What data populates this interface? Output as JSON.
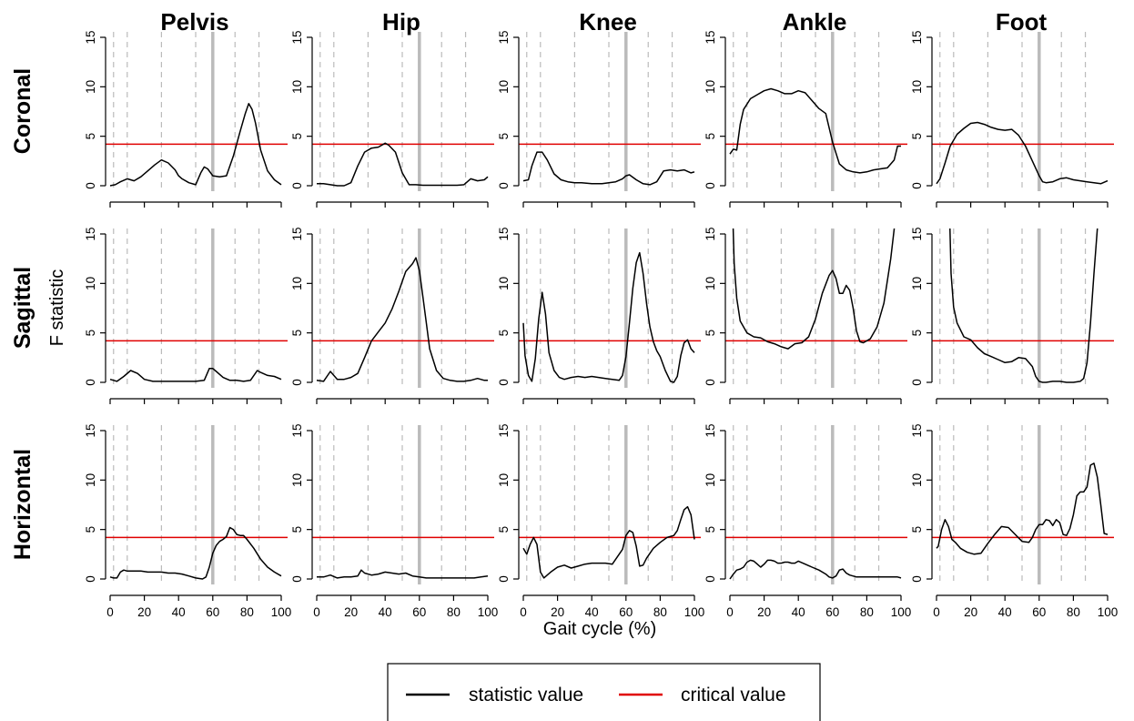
{
  "figure": {
    "xlabel": "Gait cycle (%)",
    "ylabel": "F statistic",
    "columns": [
      "Pelvis",
      "Hip",
      "Knee",
      "Ankle",
      "Foot"
    ],
    "rows": [
      "Coronal",
      "Sagittal",
      "Horizontal"
    ],
    "legend": {
      "statistic_label": "statistic value",
      "critical_label": "critical value",
      "statistic_color": "#000000",
      "critical_color": "#e00000"
    }
  },
  "chart_data": {
    "type": "line",
    "xlabel": "Gait cycle (%)",
    "ylabel": "F statistic",
    "xlim": [
      0,
      100
    ],
    "ylim": [
      0,
      15
    ],
    "xticks": [
      0,
      20,
      40,
      60,
      80,
      100
    ],
    "yticks": [
      0,
      5,
      10,
      15
    ],
    "critical_value": 4.2,
    "event_lines_dashed": [
      2,
      10,
      30,
      50,
      73,
      87
    ],
    "event_line_solid": 60,
    "grid_color": "#bbbbbb",
    "panels": [
      {
        "row": "Coronal",
        "col": "Pelvis",
        "x": [
          0,
          3,
          6,
          10,
          14,
          18,
          22,
          26,
          30,
          34,
          38,
          40,
          42,
          46,
          50,
          53,
          55,
          57,
          60,
          64,
          68,
          72,
          76,
          79,
          81,
          83,
          85,
          88,
          92,
          96,
          100
        ],
        "y": [
          0,
          0.1,
          0.4,
          0.7,
          0.5,
          0.9,
          1.5,
          2.1,
          2.6,
          2.3,
          1.6,
          1.0,
          0.7,
          0.3,
          0.1,
          1.3,
          1.9,
          1.7,
          1.0,
          0.9,
          1.0,
          3.0,
          5.5,
          7.3,
          8.3,
          7.7,
          6.3,
          3.6,
          1.5,
          0.6,
          0.1
        ]
      },
      {
        "row": "Coronal",
        "col": "Hip",
        "x": [
          0,
          4,
          8,
          12,
          16,
          20,
          24,
          28,
          32,
          36,
          40,
          42,
          46,
          50,
          54,
          58,
          62,
          66,
          70,
          74,
          78,
          82,
          86,
          90,
          94,
          98,
          100
        ],
        "y": [
          0.2,
          0.2,
          0.1,
          0,
          0,
          0.3,
          2.0,
          3.4,
          3.8,
          3.9,
          4.3,
          4.1,
          3.4,
          1.3,
          0.1,
          0.1,
          0.05,
          0.05,
          0.05,
          0.05,
          0.05,
          0.05,
          0.1,
          0.7,
          0.5,
          0.6,
          0.9
        ]
      },
      {
        "row": "Coronal",
        "col": "Knee",
        "x": [
          0,
          3,
          5,
          8,
          11,
          14,
          18,
          22,
          26,
          30,
          34,
          40,
          46,
          50,
          54,
          58,
          60,
          62,
          66,
          70,
          74,
          78,
          82,
          86,
          90,
          94,
          98,
          100
        ],
        "y": [
          0.5,
          0.6,
          2.0,
          3.4,
          3.4,
          2.6,
          1.2,
          0.6,
          0.4,
          0.3,
          0.3,
          0.2,
          0.2,
          0.3,
          0.4,
          0.7,
          1.0,
          1.1,
          0.6,
          0.2,
          0.1,
          0.4,
          1.5,
          1.6,
          1.5,
          1.6,
          1.3,
          1.4
        ]
      },
      {
        "row": "Coronal",
        "col": "Ankle",
        "x": [
          0,
          2,
          4,
          6,
          8,
          12,
          16,
          20,
          24,
          28,
          32,
          36,
          40,
          44,
          48,
          52,
          56,
          60,
          64,
          68,
          72,
          76,
          80,
          84,
          88,
          92,
          96,
          98,
          100
        ],
        "y": [
          3.2,
          3.7,
          3.6,
          6.2,
          7.7,
          8.8,
          9.2,
          9.6,
          9.8,
          9.6,
          9.3,
          9.3,
          9.6,
          9.4,
          8.6,
          7.8,
          7.3,
          4.4,
          2.2,
          1.6,
          1.4,
          1.3,
          1.4,
          1.6,
          1.7,
          1.8,
          2.6,
          4.0,
          4.0
        ]
      },
      {
        "row": "Coronal",
        "col": "Foot",
        "x": [
          0,
          2,
          5,
          8,
          12,
          16,
          20,
          24,
          28,
          32,
          36,
          40,
          44,
          48,
          52,
          56,
          60,
          62,
          64,
          68,
          72,
          76,
          80,
          84,
          88,
          92,
          96,
          100
        ],
        "y": [
          0.2,
          0.7,
          2.3,
          4.0,
          5.2,
          5.8,
          6.3,
          6.4,
          6.2,
          5.9,
          5.7,
          5.6,
          5.7,
          5.1,
          4.0,
          2.5,
          1.0,
          0.4,
          0.3,
          0.4,
          0.7,
          0.8,
          0.6,
          0.5,
          0.4,
          0.3,
          0.2,
          0.5
        ]
      },
      {
        "row": "Sagittal",
        "col": "Pelvis",
        "x": [
          0,
          4,
          8,
          12,
          16,
          20,
          25,
          30,
          35,
          40,
          45,
          50,
          55,
          58,
          60,
          62,
          66,
          70,
          74,
          78,
          82,
          86,
          88,
          92,
          96,
          100
        ],
        "y": [
          0.3,
          0.1,
          0.6,
          1.2,
          0.9,
          0.3,
          0.1,
          0.1,
          0.1,
          0.1,
          0.1,
          0.1,
          0.2,
          1.4,
          1.4,
          1.1,
          0.5,
          0.2,
          0.2,
          0.1,
          0.2,
          1.2,
          1.0,
          0.7,
          0.6,
          0.3
        ]
      },
      {
        "row": "Sagittal",
        "col": "Hip",
        "x": [
          0,
          4,
          8,
          12,
          16,
          20,
          24,
          28,
          32,
          36,
          40,
          44,
          48,
          52,
          56,
          58,
          60,
          62,
          64,
          66,
          70,
          74,
          78,
          82,
          86,
          90,
          94,
          98,
          100
        ],
        "y": [
          0.2,
          0.1,
          1.1,
          0.3,
          0.3,
          0.5,
          0.9,
          2.5,
          4.2,
          5.1,
          6.0,
          7.4,
          9.2,
          11.2,
          12.0,
          12.6,
          11.3,
          8.7,
          6.1,
          3.4,
          1.2,
          0.4,
          0.2,
          0.1,
          0.1,
          0.2,
          0.4,
          0.2,
          0.2
        ]
      },
      {
        "row": "Sagittal",
        "col": "Knee",
        "x": [
          0,
          1,
          3,
          5,
          7,
          9,
          11,
          13,
          15,
          18,
          21,
          24,
          28,
          32,
          36,
          40,
          44,
          48,
          52,
          56,
          58,
          60,
          62,
          64,
          66,
          68,
          70,
          72,
          74,
          76,
          78,
          80,
          83,
          86,
          88,
          90,
          92,
          94,
          96,
          98,
          100
        ],
        "y": [
          6.0,
          2.7,
          0.7,
          0.1,
          2.4,
          6.4,
          9.1,
          6.9,
          3.0,
          1.2,
          0.5,
          0.3,
          0.5,
          0.6,
          0.5,
          0.6,
          0.5,
          0.4,
          0.3,
          0.2,
          0.7,
          2.6,
          6.0,
          9.5,
          12.1,
          13.1,
          11.0,
          8.0,
          5.6,
          4.1,
          3.2,
          2.6,
          1.2,
          0.1,
          0.0,
          0.6,
          2.7,
          4.0,
          4.3,
          3.4,
          3.0
        ]
      },
      {
        "row": "Sagittal",
        "col": "Ankle",
        "x": [
          1.5,
          2.5,
          4,
          6,
          10,
          14,
          18,
          22,
          26,
          30,
          34,
          38,
          42,
          46,
          50,
          54,
          58,
          60,
          62,
          64,
          66,
          68,
          70,
          72,
          74,
          76,
          78,
          82,
          86,
          90,
          94,
          96,
          98
        ],
        "y": [
          18,
          12,
          8.5,
          6.2,
          5.0,
          4.6,
          4.5,
          4.1,
          3.9,
          3.6,
          3.4,
          3.9,
          4.0,
          4.6,
          6.4,
          9.0,
          10.8,
          11.3,
          10.5,
          9.0,
          9.0,
          9.8,
          9.3,
          7.5,
          5.2,
          4.1,
          4.0,
          4.4,
          5.6,
          8.0,
          12.5,
          15.5,
          18
        ]
      },
      {
        "row": "Sagittal",
        "col": "Foot",
        "x": [
          7.5,
          8.5,
          10,
          12,
          16,
          20,
          24,
          28,
          32,
          36,
          40,
          44,
          48,
          52,
          56,
          58,
          60,
          62,
          64,
          68,
          72,
          76,
          80,
          84,
          86,
          88,
          90,
          92,
          94,
          96
        ],
        "y": [
          18,
          11,
          7.6,
          6.0,
          4.6,
          4.3,
          3.5,
          2.9,
          2.6,
          2.3,
          2.0,
          2.1,
          2.5,
          2.4,
          1.6,
          0.6,
          0.1,
          0.0,
          0.0,
          0.1,
          0.1,
          0.0,
          0.0,
          0.1,
          0.4,
          2.0,
          6.0,
          11.0,
          15.5,
          18
        ]
      },
      {
        "row": "Horizontal",
        "col": "Pelvis",
        "x": [
          0,
          2,
          4,
          6,
          8,
          10,
          14,
          18,
          22,
          26,
          30,
          34,
          38,
          42,
          46,
          50,
          54,
          56,
          58,
          60,
          62,
          64,
          66,
          68,
          70,
          72,
          74,
          76,
          78,
          80,
          84,
          88,
          92,
          96,
          100
        ],
        "y": [
          0.2,
          0.1,
          0.1,
          0.7,
          0.9,
          0.8,
          0.8,
          0.8,
          0.7,
          0.7,
          0.7,
          0.6,
          0.6,
          0.5,
          0.3,
          0.1,
          0.0,
          0.2,
          1.2,
          2.6,
          3.4,
          3.8,
          4.0,
          4.3,
          5.2,
          5.0,
          4.5,
          4.4,
          4.4,
          4.0,
          3.1,
          2.0,
          1.2,
          0.7,
          0.3
        ]
      },
      {
        "row": "Horizontal",
        "col": "Hip",
        "x": [
          0,
          4,
          8,
          12,
          16,
          20,
          24,
          26,
          28,
          32,
          36,
          40,
          44,
          48,
          52,
          56,
          60,
          64,
          68,
          72,
          76,
          80,
          84,
          88,
          92,
          96,
          100
        ],
        "y": [
          0.2,
          0.2,
          0.4,
          0.1,
          0.2,
          0.2,
          0.3,
          0.9,
          0.6,
          0.4,
          0.5,
          0.7,
          0.6,
          0.5,
          0.6,
          0.3,
          0.2,
          0.1,
          0.1,
          0.1,
          0.1,
          0.1,
          0.1,
          0.1,
          0.1,
          0.2,
          0.3
        ]
      },
      {
        "row": "Horizontal",
        "col": "Knee",
        "x": [
          0,
          2,
          4,
          6,
          8,
          10,
          12,
          14,
          16,
          20,
          24,
          28,
          32,
          36,
          40,
          44,
          48,
          52,
          56,
          58,
          60,
          62,
          64,
          66,
          68,
          70,
          72,
          76,
          80,
          84,
          88,
          90,
          92,
          94,
          96,
          98,
          100
        ],
        "y": [
          3.1,
          2.5,
          3.5,
          4.2,
          3.5,
          0.7,
          0.1,
          0.4,
          0.7,
          1.2,
          1.4,
          1.1,
          1.3,
          1.5,
          1.6,
          1.6,
          1.6,
          1.5,
          2.5,
          3.0,
          4.4,
          4.9,
          4.7,
          3.3,
          1.3,
          1.4,
          2.1,
          3.1,
          3.7,
          4.2,
          4.4,
          4.9,
          6.0,
          7.0,
          7.3,
          6.5,
          4.0
        ]
      },
      {
        "row": "Horizontal",
        "col": "Ankle",
        "x": [
          0,
          2,
          4,
          6,
          8,
          10,
          12,
          14,
          16,
          18,
          20,
          22,
          24,
          26,
          28,
          30,
          32,
          34,
          36,
          38,
          40,
          44,
          48,
          52,
          56,
          58,
          60,
          62,
          64,
          66,
          68,
          70,
          74,
          78,
          82,
          86,
          90,
          94,
          98,
          100
        ],
        "y": [
          0,
          0.5,
          0.9,
          1.0,
          1.2,
          1.7,
          1.9,
          1.8,
          1.5,
          1.2,
          1.5,
          1.9,
          1.9,
          1.8,
          1.6,
          1.6,
          1.7,
          1.7,
          1.6,
          1.6,
          1.8,
          1.5,
          1.2,
          0.9,
          0.5,
          0.2,
          0.1,
          0.3,
          0.9,
          1.0,
          0.6,
          0.4,
          0.2,
          0.2,
          0.2,
          0.2,
          0.2,
          0.2,
          0.2,
          0.1
        ]
      },
      {
        "row": "Horizontal",
        "col": "Foot",
        "x": [
          0,
          1,
          3,
          5,
          7,
          9,
          11,
          14,
          18,
          22,
          26,
          30,
          34,
          38,
          42,
          46,
          50,
          54,
          56,
          58,
          60,
          62,
          64,
          66,
          68,
          70,
          72,
          74,
          76,
          78,
          80,
          82,
          84,
          86,
          88,
          90,
          92,
          94,
          96,
          98,
          100
        ],
        "y": [
          3.1,
          3.3,
          5.0,
          6.0,
          5.3,
          4.0,
          3.7,
          3.1,
          2.7,
          2.5,
          2.6,
          3.6,
          4.5,
          5.3,
          5.2,
          4.5,
          3.8,
          3.7,
          4.2,
          5.0,
          5.5,
          5.5,
          6.0,
          5.9,
          5.4,
          6.0,
          5.7,
          4.5,
          4.4,
          5.1,
          6.5,
          8.4,
          8.8,
          8.8,
          9.3,
          11.5,
          11.7,
          10.3,
          7.5,
          4.6,
          4.5
        ]
      }
    ]
  }
}
